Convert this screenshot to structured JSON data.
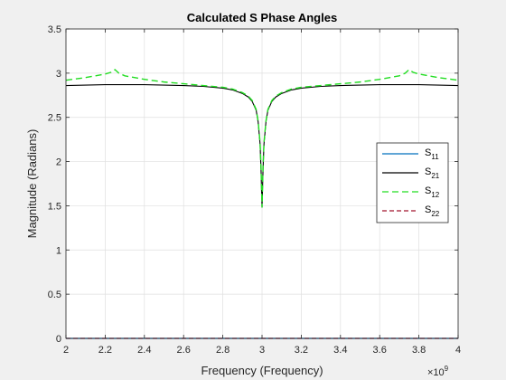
{
  "figure": {
    "background": "#f0f0f0",
    "axes_background": "#ffffff"
  },
  "chart_data": {
    "type": "line",
    "title": "Calculated S Phase Angles",
    "xlabel": "Frequency (Frequency)",
    "ylabel": "Magnitude (Radians)",
    "x_exponent_label": "×10",
    "x_exponent_power": "9",
    "xlim": [
      2000000000,
      4000000000
    ],
    "ylim": [
      0,
      3.5
    ],
    "x_ticks": [
      2000000000,
      2200000000,
      2400000000,
      2600000000,
      2800000000,
      3000000000,
      3200000000,
      3400000000,
      3600000000,
      3800000000,
      4000000000
    ],
    "x_tick_labels": [
      "2",
      "2.2",
      "2.4",
      "2.6",
      "2.8",
      "3",
      "3.2",
      "3.4",
      "3.6",
      "3.8",
      "4"
    ],
    "y_ticks": [
      0,
      0.5,
      1,
      1.5,
      2,
      2.5,
      3,
      3.5
    ],
    "y_tick_labels": [
      "0",
      "0.5",
      "1",
      "1.5",
      "2",
      "2.5",
      "3",
      "3.5"
    ],
    "grid": true,
    "legend_position": "right",
    "series": [
      {
        "name": "S",
        "subscript": "11",
        "color": "#0072bd",
        "dash": "solid",
        "x": [
          2000000000,
          2500000000,
          3000000000,
          3500000000,
          4000000000
        ],
        "y": [
          0,
          0,
          0,
          0,
          0
        ]
      },
      {
        "name": "S",
        "subscript": "21",
        "color": "#000000",
        "dash": "solid",
        "x": [
          2000000000,
          2200000000,
          2400000000,
          2600000000,
          2700000000,
          2800000000,
          2850000000,
          2900000000,
          2930000000,
          2950000000,
          2970000000,
          2980000000,
          2990000000,
          2995000000,
          3000000000,
          3005000000,
          3010000000,
          3020000000,
          3030000000,
          3050000000,
          3070000000,
          3100000000,
          3150000000,
          3200000000,
          3300000000,
          3400000000,
          3600000000,
          3800000000,
          4000000000
        ],
        "y": [
          2.86,
          2.87,
          2.87,
          2.86,
          2.85,
          2.83,
          2.81,
          2.77,
          2.73,
          2.68,
          2.58,
          2.45,
          2.2,
          1.9,
          1.48,
          1.9,
          2.2,
          2.45,
          2.58,
          2.68,
          2.73,
          2.77,
          2.81,
          2.83,
          2.85,
          2.86,
          2.87,
          2.87,
          2.86
        ]
      },
      {
        "name": "S",
        "subscript": "12",
        "color": "#22dd22",
        "dash": "long",
        "x": [
          2000000000,
          2100000000,
          2200000000,
          2230000000,
          2250000000,
          2270000000,
          2300000000,
          2400000000,
          2500000000,
          2600000000,
          2700000000,
          2800000000,
          2850000000,
          2900000000,
          2930000000,
          2950000000,
          2970000000,
          2980000000,
          2990000000,
          2995000000,
          3000000000,
          3005000000,
          3010000000,
          3020000000,
          3030000000,
          3050000000,
          3070000000,
          3100000000,
          3150000000,
          3200000000,
          3300000000,
          3400000000,
          3500000000,
          3600000000,
          3700000000,
          3730000000,
          3750000000,
          3770000000,
          3800000000,
          3900000000,
          4000000000
        ],
        "y": [
          2.92,
          2.95,
          2.99,
          3.01,
          3.04,
          3.0,
          2.97,
          2.93,
          2.9,
          2.88,
          2.86,
          2.84,
          2.82,
          2.78,
          2.74,
          2.69,
          2.59,
          2.46,
          2.22,
          1.92,
          1.48,
          1.92,
          2.22,
          2.46,
          2.59,
          2.69,
          2.74,
          2.78,
          2.82,
          2.84,
          2.86,
          2.88,
          2.9,
          2.93,
          2.97,
          3.0,
          3.04,
          3.01,
          2.99,
          2.95,
          2.92
        ]
      },
      {
        "name": "S",
        "subscript": "22",
        "color": "#a2142f",
        "dash": "short",
        "x": [
          2000000000,
          2500000000,
          3000000000,
          3500000000,
          4000000000
        ],
        "y": [
          0,
          0,
          0,
          0,
          0
        ]
      }
    ]
  }
}
